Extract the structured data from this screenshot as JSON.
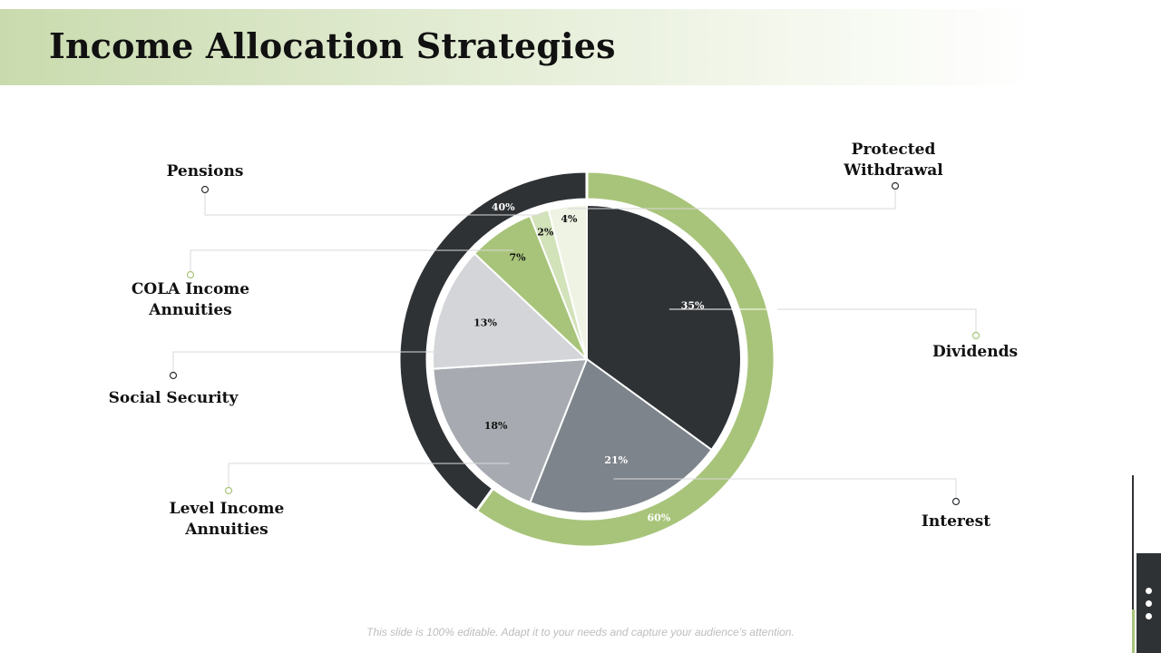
{
  "slide": {
    "title": "Income Allocation Strategies",
    "footer": "This slide is 100% editable. Adapt it to your needs and capture your audience’s attention."
  },
  "chart_data": {
    "type": "pie",
    "title": "Income Allocation Strategies",
    "slices": [
      {
        "label": "Dividends",
        "value": 35,
        "value_label": "35%",
        "color": "#2f3235",
        "text_color": "#ffffff"
      },
      {
        "label": "Interest",
        "value": 21,
        "value_label": "21%",
        "color": "#7d848b",
        "text_color": "#ffffff"
      },
      {
        "label": "Level Income Annuities",
        "value": 18,
        "value_label": "18%",
        "color": "#a7abb1",
        "text_color": "#111111"
      },
      {
        "label": "Social Security",
        "value": 13,
        "value_label": "13%",
        "color": "#d3d5d8",
        "text_color": "#111111"
      },
      {
        "label": "COLA Income Annuities",
        "value": 7,
        "value_label": "7%",
        "color": "#a8c47a",
        "text_color": "#111111"
      },
      {
        "label": "Pensions",
        "value": 2,
        "value_label": "2%",
        "color": "#d2e2b9",
        "text_color": "#111111"
      },
      {
        "label": "Protected Withdrawal",
        "value": 4,
        "value_label": "4%",
        "color": "#eef3e4",
        "text_color": "#111111"
      }
    ],
    "outer_ring": [
      {
        "value": 60,
        "value_label": "60%",
        "color": "#a8c47a",
        "text_color": "#ffffff"
      },
      {
        "value": 40,
        "value_label": "40%",
        "color": "#2f3235",
        "text_color": "#ffffff"
      }
    ]
  }
}
